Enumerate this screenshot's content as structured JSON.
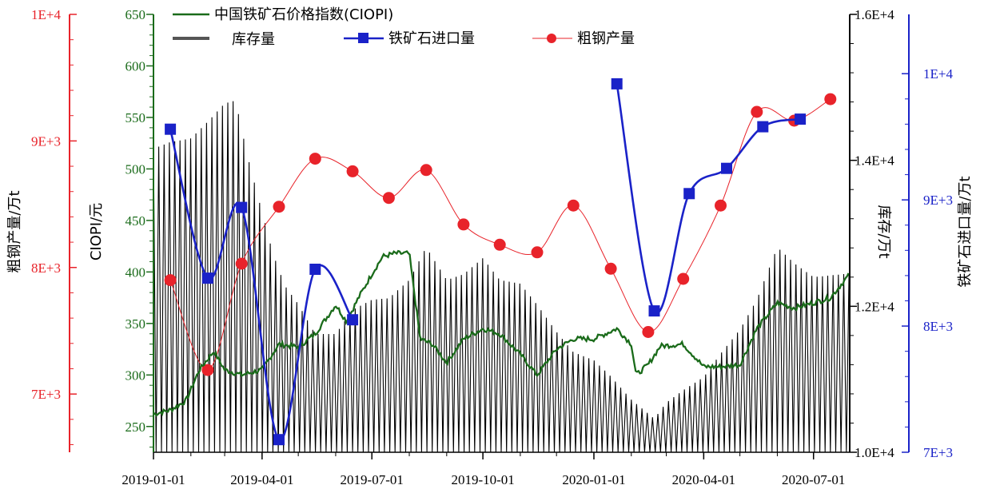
{
  "chart_data": {
    "type": "line",
    "x_axis": {
      "ticks": [
        "2019-01-01",
        "2019-04-01",
        "2019-07-01",
        "2019-10-01",
        "2020-01-01",
        "2020-04-01",
        "2020-07-01"
      ],
      "range": [
        "2019-01-01",
        "2020-07-31"
      ]
    },
    "axes": {
      "steel": {
        "label": "粗钢产量/万t",
        "color": "#e8232a",
        "ticks": [
          "7E+3",
          "8E+3",
          "9E+3",
          "1E+4"
        ],
        "tick_values": [
          7000,
          8000,
          9000,
          10000
        ],
        "range": [
          6540,
          10000
        ]
      },
      "ciopi": {
        "label": "CIOPI/元",
        "color": "#1a6b1a",
        "ticks": [
          "250",
          "300",
          "350",
          "400",
          "450",
          "500",
          "550",
          "600",
          "650"
        ],
        "tick_values": [
          250,
          300,
          350,
          400,
          450,
          500,
          550,
          600,
          650
        ],
        "range": [
          225,
          650
        ]
      },
      "inventory": {
        "label": "库存/万t",
        "color": "#000000",
        "ticks": [
          "1.0E+4",
          "1.2E+4",
          "1.4E+4",
          "1.6E+4"
        ],
        "tick_values": [
          10000,
          12000,
          14000,
          16000
        ],
        "range": [
          10000,
          16000
        ]
      },
      "imports": {
        "label": "铁矿石进口量/万t",
        "color": "#1a22c8",
        "ticks": [
          "7E+3",
          "8E+3",
          "9E+3",
          "1E+4"
        ],
        "tick_values": [
          7000,
          8000,
          9000,
          10000
        ],
        "range": [
          7000,
          10470
        ]
      }
    },
    "legend": {
      "placement": "top",
      "items": [
        {
          "key": "ciopi",
          "label": "中国铁矿石价格指数(CIOPI)"
        },
        {
          "key": "inventory",
          "label": "库存量"
        },
        {
          "key": "imports",
          "label": "铁矿石进口量"
        },
        {
          "key": "steel",
          "label": "粗钢产量"
        }
      ]
    },
    "series": {
      "steel": {
        "name": "粗钢产量",
        "color": "#e8232a",
        "marker": "circle",
        "points": [
          [
            "2019-01-15",
            7900
          ],
          [
            "2019-02-15",
            7190
          ],
          [
            "2019-03-15",
            8030
          ],
          [
            "2019-04-15",
            8480
          ],
          [
            "2019-05-15",
            8860
          ],
          [
            "2019-06-15",
            8760
          ],
          [
            "2019-07-15",
            8550
          ],
          [
            "2019-08-15",
            8770
          ],
          [
            "2019-09-15",
            8340
          ],
          [
            "2019-10-15",
            8180
          ],
          [
            "2019-11-15",
            8120
          ],
          [
            "2019-12-15",
            8490
          ],
          [
            "2020-01-15",
            7990
          ],
          [
            "2020-02-15",
            7490
          ],
          [
            "2020-03-15",
            7910
          ],
          [
            "2020-04-15",
            8490
          ],
          [
            "2020-05-15",
            9230
          ],
          [
            "2020-06-15",
            9160
          ],
          [
            "2020-07-15",
            9330
          ]
        ]
      },
      "imports": {
        "name": "铁矿石进口量",
        "color": "#1a22c8",
        "marker": "square",
        "points": [
          [
            "2019-01-15",
            9560
          ],
          [
            "2019-02-15",
            8380
          ],
          [
            "2019-03-15",
            8940
          ],
          [
            "2019-04-15",
            7100
          ],
          [
            "2019-05-15",
            8450
          ],
          [
            "2019-06-15",
            8050
          ],
          [
            null,
            null
          ],
          [
            "2020-01-20",
            9920
          ],
          [
            "2020-02-20",
            8120
          ],
          [
            "2020-03-20",
            9050
          ],
          [
            "2020-04-20",
            9250
          ],
          [
            "2020-05-20",
            9580
          ],
          [
            "2020-06-20",
            9640
          ]
        ]
      },
      "ciopi": {
        "name": "中国铁矿石价格指数(CIOPI)",
        "color": "#1a6b1a",
        "points": [
          [
            "2019-01-01",
            262
          ],
          [
            "2019-01-15",
            266
          ],
          [
            "2019-01-28",
            275
          ],
          [
            "2019-02-08",
            305
          ],
          [
            "2019-02-20",
            323
          ],
          [
            "2019-03-01",
            305
          ],
          [
            "2019-03-15",
            300
          ],
          [
            "2019-04-01",
            305
          ],
          [
            "2019-04-15",
            330
          ],
          [
            "2019-05-01",
            327
          ],
          [
            "2019-05-15",
            340
          ],
          [
            "2019-06-01",
            368
          ],
          [
            "2019-06-10",
            352
          ],
          [
            "2019-06-20",
            375
          ],
          [
            "2019-07-01",
            398
          ],
          [
            "2019-07-10",
            415
          ],
          [
            "2019-07-20",
            418
          ],
          [
            "2019-08-01",
            418
          ],
          [
            "2019-08-10",
            335
          ],
          [
            "2019-08-20",
            330
          ],
          [
            "2019-09-01",
            312
          ],
          [
            "2019-09-15",
            335
          ],
          [
            "2019-10-01",
            345
          ],
          [
            "2019-10-15",
            340
          ],
          [
            "2019-11-01",
            320
          ],
          [
            "2019-11-15",
            300
          ],
          [
            "2019-12-01",
            325
          ],
          [
            "2019-12-15",
            335
          ],
          [
            "2020-01-01",
            335
          ],
          [
            "2020-01-20",
            345
          ],
          [
            "2020-02-01",
            330
          ],
          [
            "2020-02-05",
            300
          ],
          [
            "2020-02-15",
            310
          ],
          [
            "2020-02-25",
            328
          ],
          [
            "2020-03-15",
            330
          ],
          [
            "2020-04-01",
            308
          ],
          [
            "2020-04-15",
            308
          ],
          [
            "2020-05-01",
            310
          ],
          [
            "2020-05-15",
            345
          ],
          [
            "2020-06-01",
            370
          ],
          [
            "2020-06-15",
            365
          ],
          [
            "2020-07-01",
            370
          ],
          [
            "2020-07-15",
            375
          ],
          [
            "2020-07-31",
            398
          ]
        ]
      },
      "inventory": {
        "name": "库存量",
        "color": "#000000",
        "points": [
          [
            "2019-01-01",
            14160
          ],
          [
            "2019-01-15",
            14250
          ],
          [
            "2019-02-01",
            14300
          ],
          [
            "2019-02-15",
            14530
          ],
          [
            "2019-03-01",
            14780
          ],
          [
            "2019-03-10",
            14820
          ],
          [
            "2019-03-20",
            14050
          ],
          [
            "2019-04-01",
            13290
          ],
          [
            "2019-04-10",
            12720
          ],
          [
            "2019-04-20",
            12280
          ],
          [
            "2019-05-01",
            12030
          ],
          [
            "2019-05-15",
            11620
          ],
          [
            "2019-06-01",
            11620
          ],
          [
            "2019-06-15",
            11950
          ],
          [
            "2019-07-01",
            12090
          ],
          [
            "2019-07-15",
            12110
          ],
          [
            "2019-08-01",
            12360
          ],
          [
            "2019-08-15",
            12810
          ],
          [
            "2019-09-01",
            12360
          ],
          [
            "2019-09-15",
            12440
          ],
          [
            "2019-10-01",
            12660
          ],
          [
            "2019-10-15",
            12360
          ],
          [
            "2019-11-01",
            12310
          ],
          [
            "2019-11-15",
            12020
          ],
          [
            "2019-12-01",
            11650
          ],
          [
            "2019-12-15",
            11370
          ],
          [
            "2020-01-01",
            11260
          ],
          [
            "2020-01-15",
            11040
          ],
          [
            "2020-02-01",
            10720
          ],
          [
            "2020-02-20",
            10460
          ],
          [
            "2020-03-01",
            10680
          ],
          [
            "2020-03-15",
            10850
          ],
          [
            "2020-04-01",
            11030
          ],
          [
            "2020-04-15",
            11350
          ],
          [
            "2020-05-01",
            11680
          ],
          [
            "2020-05-15",
            12090
          ],
          [
            "2020-06-01",
            12810
          ],
          [
            "2020-06-15",
            12590
          ],
          [
            "2020-07-01",
            12400
          ],
          [
            "2020-07-31",
            12450
          ]
        ]
      }
    }
  }
}
